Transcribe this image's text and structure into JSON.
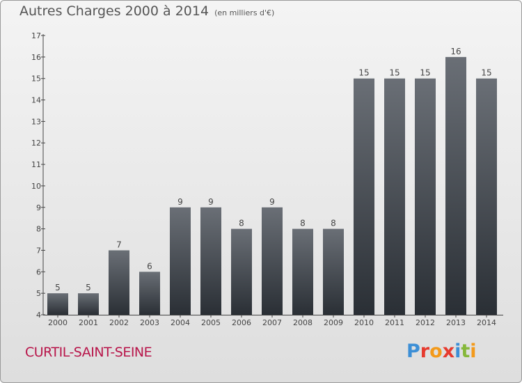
{
  "header": {
    "title": "Autres Charges 2000 à 2014",
    "unit": "(en milliers d'€)"
  },
  "footer": {
    "commune": "CURTIL-SAINT-SEINE",
    "logo_text": "Proxiti",
    "logo_colors": [
      "#3d8fd6",
      "#e63a2e",
      "#f39a1b",
      "#e63a2e",
      "#3d8fd6",
      "#86b83a",
      "#f39a1b"
    ]
  },
  "colors": {
    "bar_top": "#6a6f76",
    "bar_bottom": "#2a2f35",
    "commune": "#b8154a",
    "text": "#555555"
  },
  "chart_data": {
    "type": "bar",
    "title": "Autres Charges 2000 à 2014",
    "subtitle": "(en milliers d'€)",
    "categories": [
      "2000",
      "2001",
      "2002",
      "2003",
      "2004",
      "2005",
      "2006",
      "2007",
      "2008",
      "2009",
      "2010",
      "2011",
      "2012",
      "2013",
      "2014"
    ],
    "values": [
      5,
      5,
      7,
      6,
      9,
      9,
      8,
      9,
      8,
      8,
      15,
      15,
      15,
      16,
      15
    ],
    "ylim": [
      4,
      17
    ],
    "yticks": [
      4,
      5,
      6,
      7,
      8,
      9,
      10,
      11,
      12,
      13,
      14,
      15,
      16,
      17
    ],
    "grid": false,
    "xlabel": "",
    "ylabel": ""
  }
}
